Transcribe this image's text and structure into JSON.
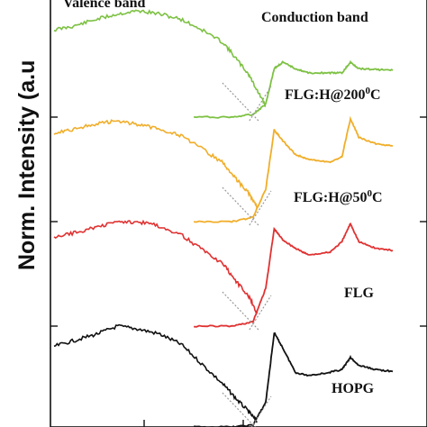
{
  "chart_data": {
    "type": "line",
    "ylabel": "Norm. Intensity (a.u",
    "headers": {
      "valence": "Valence band",
      "conduction": "Conduction band"
    },
    "colors": {
      "FLG:H@200°C": "#7dc143",
      "FLG:H@50°C": "#f0ae2a",
      "FLG": "#e03232",
      "HOPG": "#111111",
      "dotted": "#999999"
    },
    "spectra": [
      {
        "label": "FLG:H@200",
        "label_superscript": "0",
        "label_unit": "C",
        "color": "#7dc143",
        "valence": [
          [
            0,
            0.82
          ],
          [
            0.05,
            0.86
          ],
          [
            0.1,
            0.92
          ],
          [
            0.15,
            0.97
          ],
          [
            0.2,
            1.0
          ],
          [
            0.25,
            0.97
          ],
          [
            0.3,
            0.92
          ],
          [
            0.35,
            0.82
          ],
          [
            0.4,
            0.7
          ],
          [
            0.43,
            0.55
          ],
          [
            0.46,
            0.4
          ],
          [
            0.48,
            0.25
          ],
          [
            0.5,
            0.1
          ]
        ],
        "conduction": [
          [
            0.33,
            0.0
          ],
          [
            0.42,
            0.0
          ],
          [
            0.47,
            0.03
          ],
          [
            0.5,
            0.15
          ],
          [
            0.52,
            0.55
          ],
          [
            0.54,
            0.62
          ],
          [
            0.57,
            0.55
          ],
          [
            0.6,
            0.5
          ],
          [
            0.65,
            0.5
          ],
          [
            0.68,
            0.5
          ],
          [
            0.7,
            0.62
          ],
          [
            0.72,
            0.55
          ],
          [
            0.76,
            0.54
          ],
          [
            0.8,
            0.53
          ]
        ]
      },
      {
        "label": "FLG:H@50",
        "label_superscript": "0",
        "label_unit": "C",
        "color": "#f0ae2a",
        "valence": [
          [
            0,
            0.88
          ],
          [
            0.05,
            0.92
          ],
          [
            0.1,
            0.97
          ],
          [
            0.15,
            1.0
          ],
          [
            0.2,
            0.96
          ],
          [
            0.25,
            0.92
          ],
          [
            0.3,
            0.85
          ],
          [
            0.35,
            0.72
          ],
          [
            0.4,
            0.58
          ],
          [
            0.43,
            0.42
          ],
          [
            0.46,
            0.28
          ],
          [
            0.48,
            0.15
          ]
        ],
        "conduction": [
          [
            0.33,
            0.0
          ],
          [
            0.42,
            0.0
          ],
          [
            0.47,
            0.04
          ],
          [
            0.5,
            0.3
          ],
          [
            0.52,
            0.85
          ],
          [
            0.54,
            0.75
          ],
          [
            0.57,
            0.62
          ],
          [
            0.6,
            0.58
          ],
          [
            0.65,
            0.55
          ],
          [
            0.68,
            0.6
          ],
          [
            0.7,
            0.95
          ],
          [
            0.72,
            0.78
          ],
          [
            0.76,
            0.72
          ],
          [
            0.8,
            0.7
          ]
        ]
      },
      {
        "label": "FLG",
        "color": "#e03232",
        "valence": [
          [
            0,
            0.83
          ],
          [
            0.05,
            0.88
          ],
          [
            0.1,
            0.93
          ],
          [
            0.15,
            0.98
          ],
          [
            0.2,
            0.98
          ],
          [
            0.25,
            0.94
          ],
          [
            0.3,
            0.86
          ],
          [
            0.35,
            0.72
          ],
          [
            0.4,
            0.58
          ],
          [
            0.43,
            0.42
          ],
          [
            0.46,
            0.28
          ],
          [
            0.48,
            0.12
          ]
        ],
        "conduction": [
          [
            0.33,
            0.0
          ],
          [
            0.42,
            0.0
          ],
          [
            0.47,
            0.04
          ],
          [
            0.5,
            0.35
          ],
          [
            0.52,
            0.9
          ],
          [
            0.54,
            0.8
          ],
          [
            0.57,
            0.72
          ],
          [
            0.6,
            0.66
          ],
          [
            0.65,
            0.68
          ],
          [
            0.68,
            0.78
          ],
          [
            0.7,
            0.95
          ],
          [
            0.72,
            0.78
          ],
          [
            0.76,
            0.72
          ],
          [
            0.8,
            0.7
          ]
        ]
      },
      {
        "label": "HOPG",
        "color": "#111111",
        "valence": [
          [
            0,
            0.8
          ],
          [
            0.05,
            0.86
          ],
          [
            0.1,
            0.92
          ],
          [
            0.15,
            1.0
          ],
          [
            0.2,
            0.97
          ],
          [
            0.25,
            0.92
          ],
          [
            0.3,
            0.82
          ],
          [
            0.35,
            0.62
          ],
          [
            0.4,
            0.42
          ],
          [
            0.43,
            0.28
          ],
          [
            0.46,
            0.15
          ],
          [
            0.48,
            0.05
          ]
        ],
        "conduction": [
          [
            0.33,
            0.0
          ],
          [
            0.42,
            0.0
          ],
          [
            0.47,
            0.02
          ],
          [
            0.5,
            0.25
          ],
          [
            0.52,
            0.95
          ],
          [
            0.54,
            0.8
          ],
          [
            0.57,
            0.55
          ],
          [
            0.6,
            0.52
          ],
          [
            0.65,
            0.55
          ],
          [
            0.68,
            0.58
          ],
          [
            0.7,
            0.7
          ],
          [
            0.72,
            0.62
          ],
          [
            0.76,
            0.58
          ],
          [
            0.8,
            0.56
          ]
        ]
      }
    ]
  }
}
